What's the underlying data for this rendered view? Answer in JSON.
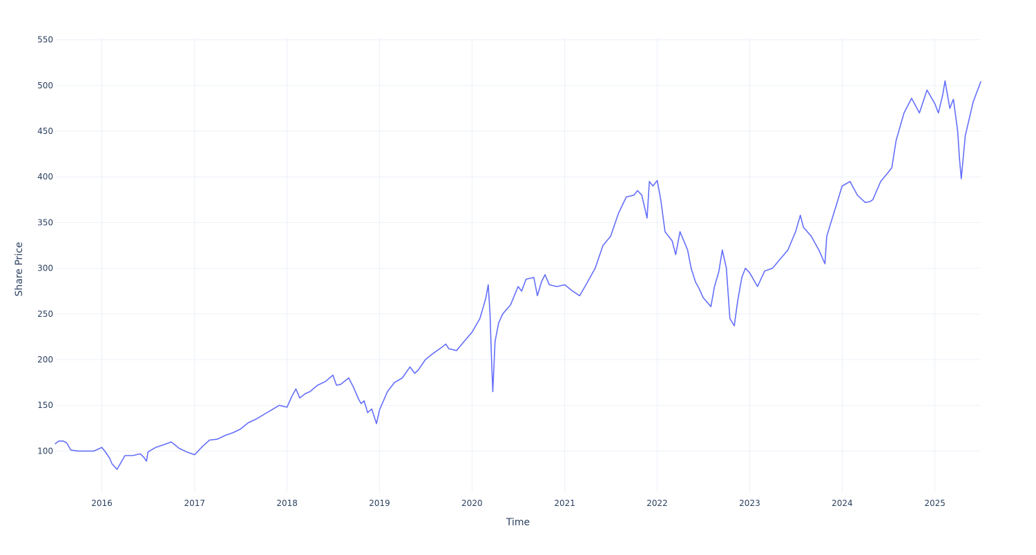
{
  "colors": {
    "series": "#636efa",
    "grid": "#ebf0f8",
    "text": "#2a3f5f",
    "background": "#ffffff"
  },
  "chart_data": {
    "type": "line",
    "title": "",
    "xlabel": "Time",
    "ylabel": "Share Price",
    "grid": true,
    "legend": "none",
    "xlim": [
      "2015-07-01",
      "2025-07-01"
    ],
    "ylim": [
      55,
      552
    ],
    "x_ticks": [
      "2016",
      "2017",
      "2018",
      "2019",
      "2020",
      "2021",
      "2022",
      "2023",
      "2024",
      "2025"
    ],
    "y_ticks": [
      100,
      150,
      200,
      250,
      300,
      350,
      400,
      450,
      500,
      550
    ],
    "series": [
      {
        "x": [
          "2015-07-01",
          "2015-07-15",
          "2015-08-01",
          "2015-08-15",
          "2015-09-01",
          "2015-10-01",
          "2015-11-01",
          "2015-12-01",
          "2016-01-01",
          "2016-01-15",
          "2016-02-01",
          "2016-02-10",
          "2016-03-01",
          "2016-04-01",
          "2016-05-01",
          "2016-06-01",
          "2016-06-15",
          "2016-06-25",
          "2016-07-01",
          "2016-08-01",
          "2016-09-01",
          "2016-10-01",
          "2016-11-01",
          "2016-12-01",
          "2017-01-01",
          "2017-02-01",
          "2017-03-01",
          "2017-04-01",
          "2017-05-01",
          "2017-06-01",
          "2017-07-01",
          "2017-08-01",
          "2017-09-01",
          "2017-10-01",
          "2017-11-01",
          "2017-12-01",
          "2018-01-01",
          "2018-01-20",
          "2018-02-05",
          "2018-02-20",
          "2018-03-15",
          "2018-04-01",
          "2018-05-01",
          "2018-06-01",
          "2018-07-01",
          "2018-07-15",
          "2018-08-01",
          "2018-09-01",
          "2018-09-20",
          "2018-10-10",
          "2018-10-20",
          "2018-11-01",
          "2018-11-15",
          "2018-12-01",
          "2018-12-20",
          "2019-01-01",
          "2019-02-01",
          "2019-03-01",
          "2019-04-01",
          "2019-05-01",
          "2019-05-20",
          "2019-06-01",
          "2019-07-01",
          "2019-08-01",
          "2019-09-01",
          "2019-09-20",
          "2019-10-01",
          "2019-11-01",
          "2019-12-01",
          "2020-01-01",
          "2020-02-01",
          "2020-02-15",
          "2020-02-25",
          "2020-03-05",
          "2020-03-12",
          "2020-03-18",
          "2020-03-23",
          "2020-04-01",
          "2020-04-15",
          "2020-05-01",
          "2020-06-01",
          "2020-07-01",
          "2020-07-15",
          "2020-08-01",
          "2020-09-01",
          "2020-09-15",
          "2020-10-01",
          "2020-10-15",
          "2020-11-01",
          "2020-12-01",
          "2021-01-01",
          "2021-02-01",
          "2021-03-01",
          "2021-04-01",
          "2021-05-01",
          "2021-06-01",
          "2021-07-01",
          "2021-08-01",
          "2021-09-01",
          "2021-10-01",
          "2021-10-15",
          "2021-11-01",
          "2021-11-22",
          "2021-12-01",
          "2021-12-15",
          "2022-01-01",
          "2022-01-15",
          "2022-02-01",
          "2022-03-01",
          "2022-03-15",
          "2022-04-01",
          "2022-05-01",
          "2022-05-15",
          "2022-06-01",
          "2022-06-15",
          "2022-07-01",
          "2022-08-01",
          "2022-08-15",
          "2022-09-01",
          "2022-09-15",
          "2022-10-01",
          "2022-10-15",
          "2022-11-01",
          "2022-11-15",
          "2022-12-01",
          "2022-12-15",
          "2023-01-01",
          "2023-02-01",
          "2023-03-01",
          "2023-04-01",
          "2023-05-01",
          "2023-06-01",
          "2023-07-01",
          "2023-07-20",
          "2023-08-01",
          "2023-09-01",
          "2023-10-01",
          "2023-10-25",
          "2023-11-01",
          "2023-12-01",
          "2024-01-01",
          "2024-02-01",
          "2024-03-01",
          "2024-04-01",
          "2024-04-20",
          "2024-05-01",
          "2024-06-01",
          "2024-07-01",
          "2024-07-15",
          "2024-08-01",
          "2024-09-01",
          "2024-10-01",
          "2024-11-01",
          "2024-12-01",
          "2025-01-01",
          "2025-01-15",
          "2025-02-01",
          "2025-02-10",
          "2025-03-01",
          "2025-03-15",
          "2025-04-01",
          "2025-04-08",
          "2025-04-15",
          "2025-05-01",
          "2025-06-01",
          "2025-07-01"
        ],
        "values": [
          108,
          111,
          111,
          109,
          101,
          100,
          100,
          100,
          104,
          99,
          92,
          86,
          80,
          95,
          95,
          97,
          93,
          89,
          99,
          104,
          107,
          110,
          103,
          99,
          96,
          105,
          112,
          113,
          117,
          120,
          124,
          131,
          135,
          140,
          145,
          150,
          148,
          160,
          168,
          158,
          163,
          165,
          172,
          176,
          183,
          172,
          173,
          180,
          170,
          157,
          152,
          155,
          142,
          146,
          130,
          145,
          165,
          175,
          180,
          192,
          185,
          188,
          200,
          207,
          213,
          217,
          212,
          210,
          220,
          230,
          245,
          258,
          268,
          282,
          250,
          200,
          165,
          220,
          240,
          250,
          260,
          280,
          275,
          288,
          290,
          270,
          285,
          293,
          282,
          280,
          282,
          275,
          270,
          285,
          300,
          325,
          335,
          360,
          378,
          380,
          385,
          380,
          355,
          395,
          390,
          396,
          375,
          340,
          330,
          315,
          340,
          320,
          300,
          285,
          278,
          268,
          258,
          280,
          296,
          320,
          300,
          245,
          237,
          265,
          290,
          300,
          295,
          280,
          297,
          300,
          310,
          320,
          340,
          358,
          345,
          335,
          320,
          305,
          335,
          362,
          390,
          395,
          380,
          372,
          373,
          375,
          395,
          405,
          410,
          440,
          470,
          486,
          470,
          495,
          480,
          470,
          490,
          505,
          475,
          485,
          450,
          420,
          398,
          445,
          482,
          504
        ]
      }
    ]
  }
}
